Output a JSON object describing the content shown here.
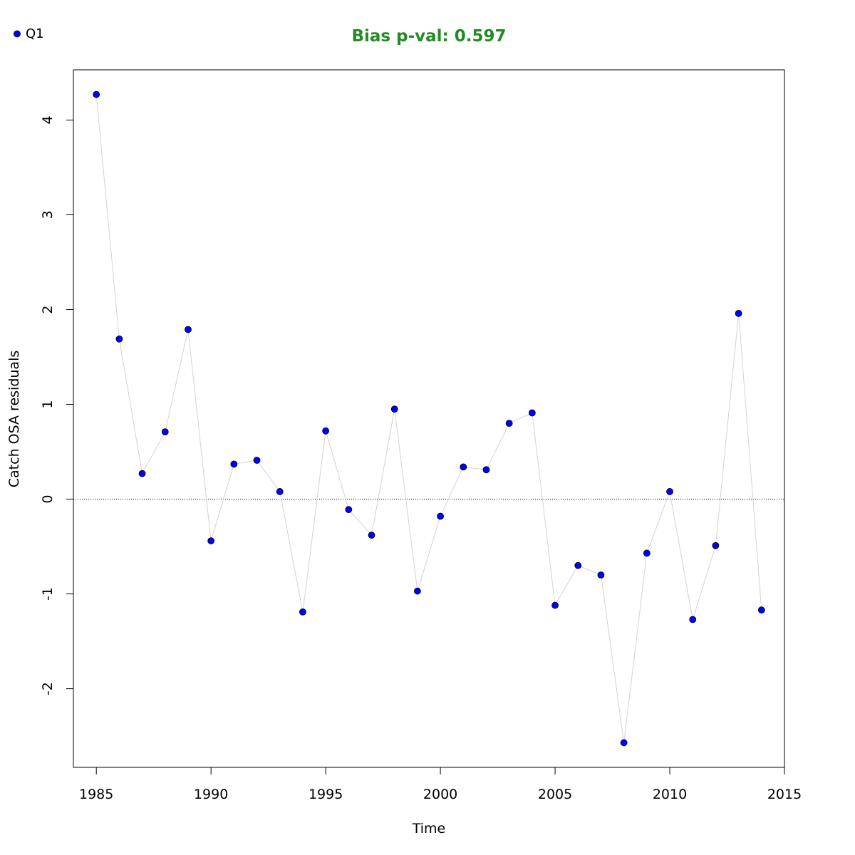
{
  "chart_data": {
    "type": "scatter",
    "title": "Bias p-val: 0.597",
    "xlabel": "Time",
    "ylabel": "Catch OSA residuals",
    "xlim": [
      1984,
      2015
    ],
    "ylim": [
      -2.83,
      4.53
    ],
    "xticks": [
      1985,
      1990,
      1995,
      2000,
      2005,
      2010,
      2015
    ],
    "yticks": [
      -2,
      -1,
      0,
      1,
      2,
      3,
      4
    ],
    "reference_line": 0,
    "grid": false,
    "legend_position": "top-left",
    "series": [
      {
        "name": "Q1",
        "x": [
          1985,
          1986,
          1987,
          1988,
          1989,
          1990,
          1991,
          1992,
          1993,
          1994,
          1995,
          1996,
          1997,
          1998,
          1999,
          2000,
          2001,
          2002,
          2003,
          2004,
          2005,
          2006,
          2007,
          2008,
          2009,
          2010,
          2011,
          2012,
          2013,
          2014
        ],
        "values": [
          4.27,
          1.69,
          0.27,
          0.71,
          1.79,
          -0.44,
          0.37,
          0.41,
          0.08,
          -1.19,
          0.72,
          -0.11,
          -0.38,
          0.95,
          -0.97,
          -0.18,
          0.34,
          0.31,
          0.8,
          0.91,
          -1.12,
          -0.7,
          -0.8,
          -2.57,
          -0.57,
          0.08,
          -1.27,
          -0.49,
          1.96,
          -1.17
        ]
      }
    ]
  },
  "colors": {
    "point_fill": "#0000ff",
    "point_stroke": "#000000",
    "connector_line": "#d3d3d3",
    "title": "#228b22",
    "reference_line": "#000000"
  }
}
